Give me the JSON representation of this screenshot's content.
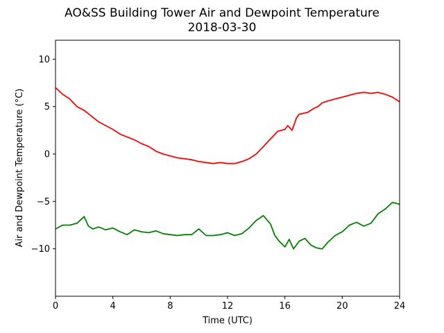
{
  "chart_data": {
    "type": "line",
    "title": "AO&SS Building Tower Air and Dewpoint Temperature",
    "subtitle": "2018-03-30",
    "xlabel": "Time (UTC)",
    "ylabel": "Air and Dewpoint Temperature (°C)",
    "xlim": [
      0,
      24
    ],
    "ylim": [
      -15,
      12
    ],
    "xticks": [
      0,
      4,
      8,
      12,
      16,
      20,
      24
    ],
    "yticks": [
      -10,
      -5,
      0,
      5,
      10
    ],
    "grid": false,
    "series": [
      {
        "color": "#ff0000",
        "x": [
          0,
          0.5,
          1,
          1.5,
          2,
          2.5,
          3,
          3.5,
          4,
          4.5,
          5,
          5.5,
          6,
          6.5,
          7,
          7.5,
          8,
          8.5,
          9,
          9.5,
          10,
          10.5,
          11,
          11.5,
          12,
          12.5,
          13,
          13.5,
          14,
          14.5,
          15,
          15.5,
          16,
          16.2,
          16.5,
          16.8,
          17,
          17.3,
          17.6,
          18,
          18.3,
          18.6,
          19,
          19.5,
          20,
          20.5,
          21,
          21.5,
          22,
          22.5,
          23,
          23.5,
          24
        ],
        "y": [
          7.0,
          6.3,
          5.8,
          5.0,
          4.6,
          4.0,
          3.4,
          3.0,
          2.6,
          2.1,
          1.8,
          1.5,
          1.1,
          0.8,
          0.3,
          0.0,
          -0.2,
          -0.4,
          -0.5,
          -0.6,
          -0.8,
          -0.9,
          -1.0,
          -0.9,
          -1.0,
          -1.0,
          -0.8,
          -0.5,
          0.0,
          0.8,
          1.6,
          2.4,
          2.6,
          3.0,
          2.5,
          3.8,
          4.2,
          4.3,
          4.4,
          4.8,
          5.0,
          5.4,
          5.6,
          5.8,
          6.0,
          6.2,
          6.4,
          6.5,
          6.4,
          6.5,
          6.3,
          6.0,
          5.5
        ]
      },
      {
        "color": "#008000",
        "x": [
          0,
          0.5,
          1,
          1.5,
          2,
          2.3,
          2.6,
          3,
          3.5,
          4,
          4.5,
          5,
          5.5,
          6,
          6.5,
          7,
          7.5,
          8,
          8.5,
          9,
          9.5,
          10,
          10.5,
          11,
          11.5,
          12,
          12.5,
          13,
          13.5,
          14,
          14.5,
          15,
          15.3,
          15.6,
          16,
          16.3,
          16.6,
          17,
          17.4,
          17.8,
          18.2,
          18.6,
          19,
          19.5,
          20,
          20.5,
          21,
          21.5,
          22,
          22.5,
          23,
          23.5,
          24
        ],
        "y": [
          -7.9,
          -7.5,
          -7.5,
          -7.3,
          -6.6,
          -7.6,
          -7.9,
          -7.7,
          -8.0,
          -7.8,
          -8.2,
          -8.5,
          -8.0,
          -8.2,
          -8.3,
          -8.1,
          -8.4,
          -8.5,
          -8.6,
          -8.5,
          -8.5,
          -7.9,
          -8.6,
          -8.6,
          -8.5,
          -8.3,
          -8.6,
          -8.4,
          -7.8,
          -7.0,
          -6.5,
          -7.4,
          -8.6,
          -9.2,
          -9.8,
          -9.0,
          -10.0,
          -9.2,
          -8.9,
          -9.6,
          -9.9,
          -10.0,
          -9.3,
          -8.6,
          -8.2,
          -7.5,
          -7.2,
          -7.6,
          -7.3,
          -6.3,
          -5.8,
          -5.1,
          -5.3
        ]
      }
    ]
  }
}
